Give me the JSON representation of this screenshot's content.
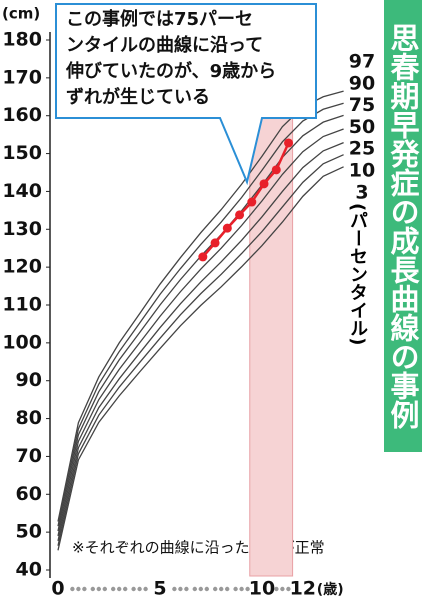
{
  "chart_data": {
    "type": "line",
    "title": "思春期早発症の成長曲線の事例",
    "y_unit": "(cm)",
    "x_unit": "(歳)",
    "xlim": [
      0,
      14
    ],
    "ylim": [
      40,
      180
    ],
    "xticks": [
      0,
      5,
      10,
      12
    ],
    "xminor_ticks": [
      1,
      2,
      3,
      4,
      6,
      7,
      8,
      9,
      11
    ],
    "yticks": [
      40,
      50,
      60,
      70,
      80,
      90,
      100,
      110,
      120,
      130,
      140,
      150,
      160,
      170,
      180
    ],
    "x": [
      0,
      1,
      2,
      3,
      4,
      5,
      6,
      7,
      8,
      9,
      10,
      11,
      12,
      13,
      14
    ],
    "series": [
      {
        "name": "97",
        "color": "#444444",
        "values": [
          52.8,
          78.9,
          91.0,
          100.0,
          107.7,
          115.5,
          122.5,
          129.1,
          135.2,
          141.9,
          149.3,
          157.1,
          162.3,
          165.0,
          166.5
        ]
      },
      {
        "name": "90",
        "color": "#444444",
        "values": [
          51.6,
          77.3,
          89.1,
          97.7,
          105.2,
          112.8,
          119.6,
          126.0,
          131.9,
          138.4,
          145.6,
          153.1,
          158.6,
          161.7,
          163.3
        ]
      },
      {
        "name": "75",
        "color": "#444444",
        "values": [
          50.3,
          75.7,
          87.1,
          95.5,
          102.7,
          110.0,
          116.7,
          122.9,
          128.6,
          134.9,
          141.7,
          149.0,
          154.7,
          158.3,
          160.1
        ]
      },
      {
        "name": "50",
        "color": "#444444",
        "values": [
          49,
          74,
          85,
          93,
          100,
          107,
          113.5,
          119.5,
          125,
          131,
          137.5,
          144.5,
          150.5,
          154.5,
          156.5
        ]
      },
      {
        "name": "25",
        "color": "#444444",
        "values": [
          47.7,
          72.3,
          82.9,
          90.5,
          97.3,
          104.0,
          110.3,
          116.1,
          121.4,
          127.1,
          133.3,
          140.0,
          146.3,
          150.7,
          152.9
        ]
      },
      {
        "name": "10",
        "color": "#444444",
        "values": [
          46.4,
          70.7,
          80.9,
          88.3,
          94.8,
          101.2,
          107.4,
          113.0,
          118.1,
          123.6,
          129.4,
          135.9,
          142.4,
          147.3,
          149.7
        ]
      },
      {
        "name": "3",
        "color": "#444444",
        "values": [
          45.2,
          69.1,
          79.0,
          86.0,
          92.3,
          98.5,
          104.5,
          109.9,
          114.8,
          120.1,
          125.7,
          131.9,
          138.7,
          144.0,
          146.5
        ]
      }
    ],
    "percentile_label": "(パーセンタイル)",
    "case": {
      "color": "#e8202a",
      "x": [
        7.1,
        7.7,
        8.3,
        8.9,
        9.5,
        10.1,
        10.7,
        11.3
      ],
      "values": [
        122.7,
        126.4,
        130.3,
        133.8,
        137.2,
        142,
        145.7,
        152.8
      ]
    },
    "shaded_range": [
      9.4,
      11.5
    ],
    "shaded_color": "#f6d3d4",
    "annotation": [
      "この事例では75パーセ",
      "ンタイルの曲線に沿って",
      "伸びていたのが、9歳から",
      "ずれが生じている"
    ],
    "note": "※それぞれの曲線に沿った成長が正常"
  }
}
